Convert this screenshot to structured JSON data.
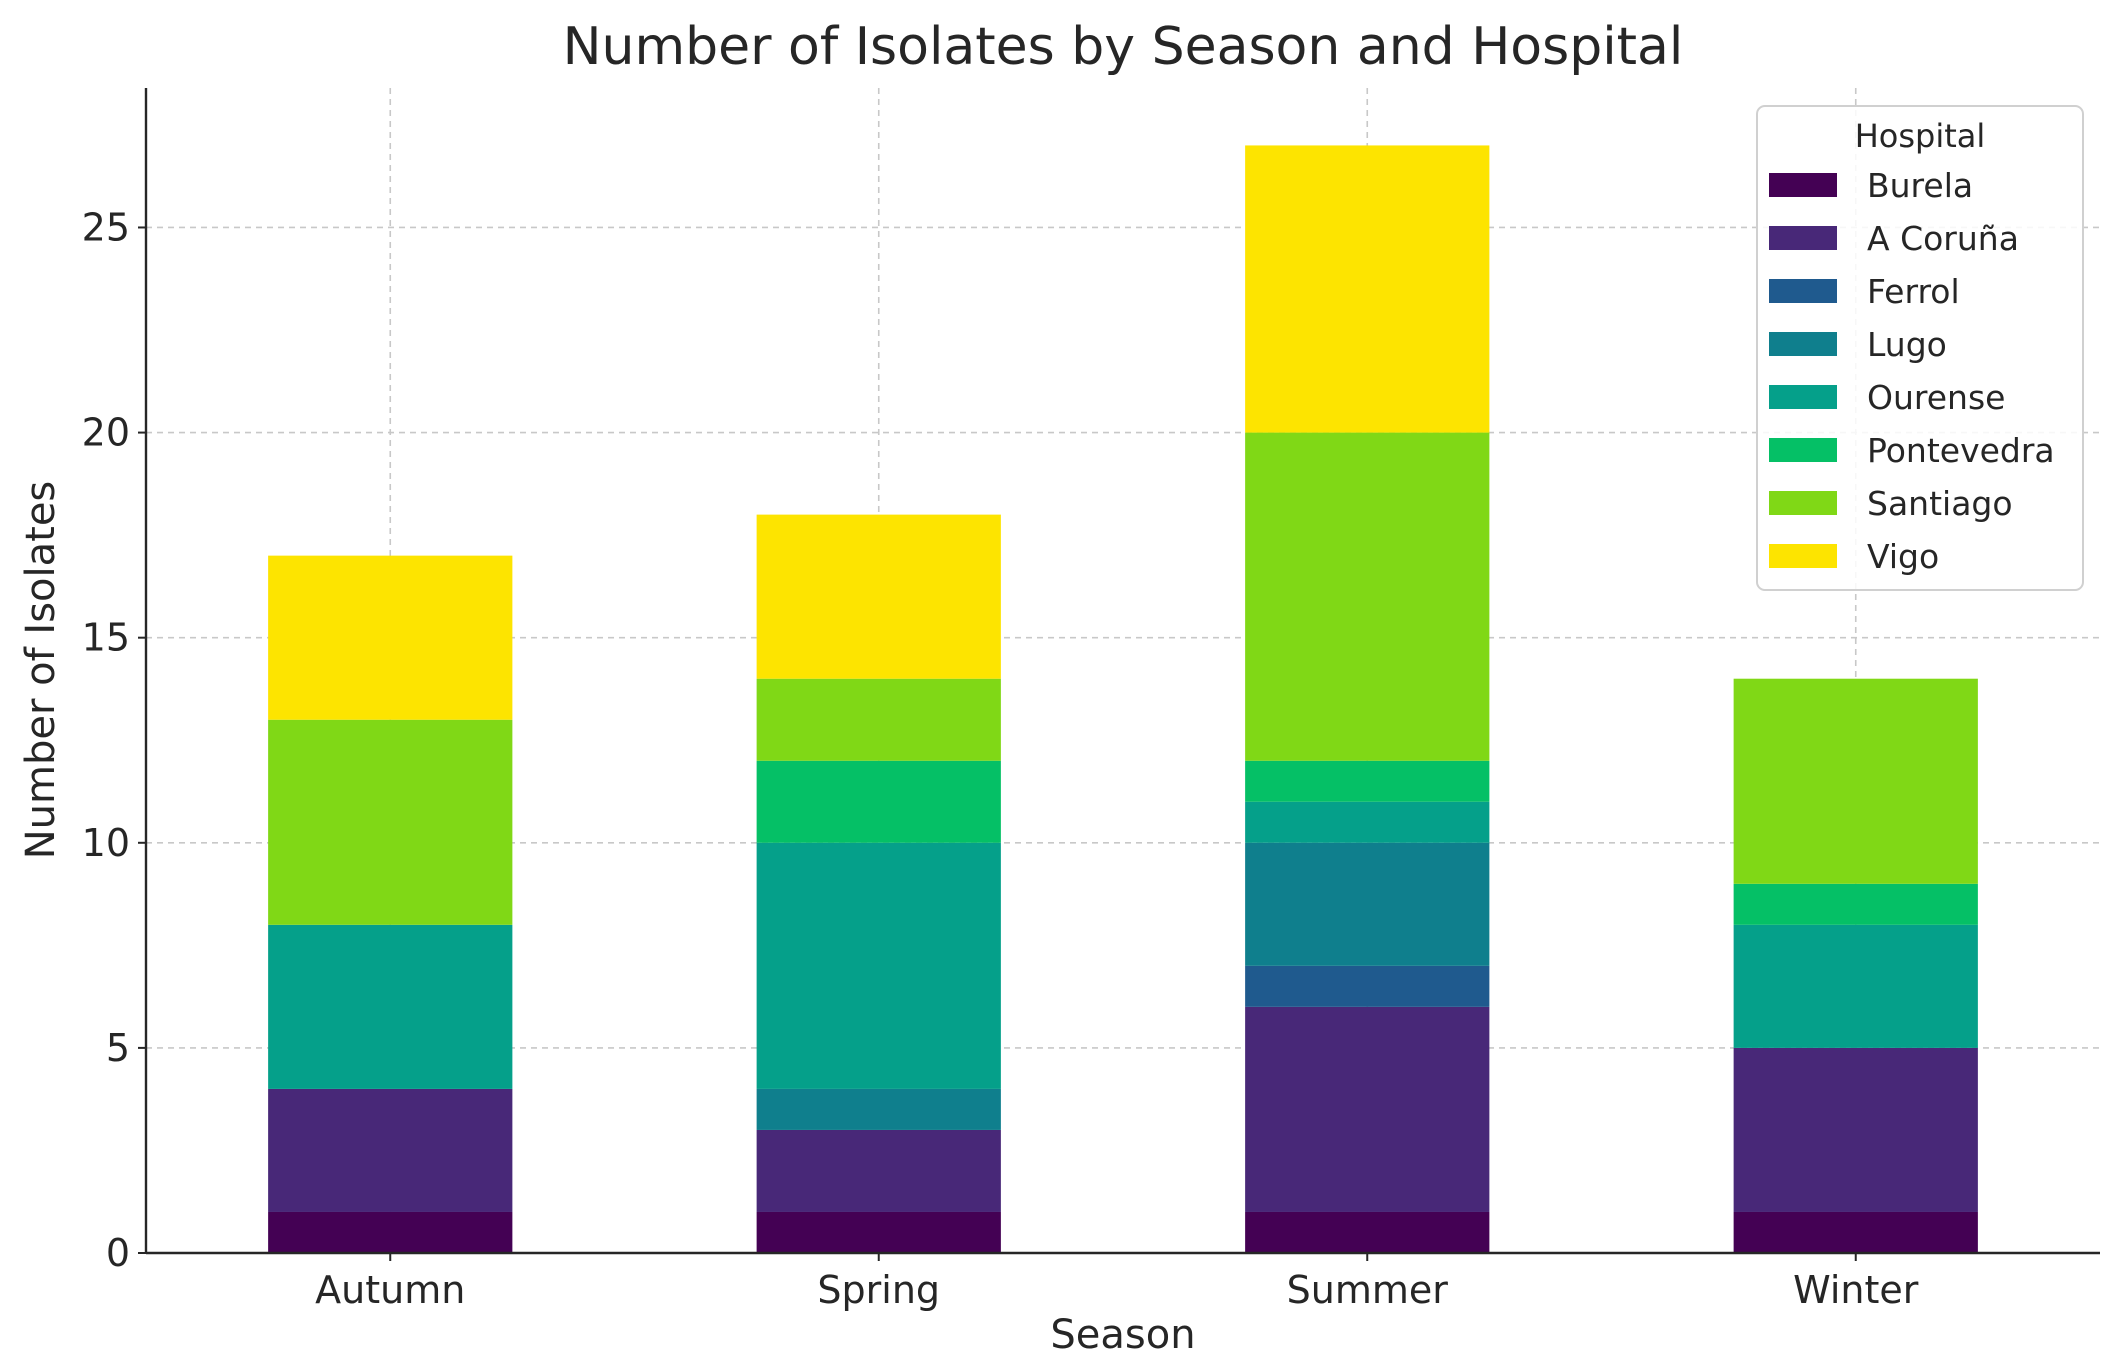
{
  "chart_data": {
    "type": "bar",
    "stacked": true,
    "title": "Number of Isolates by Season and Hospital",
    "xlabel": "Season",
    "ylabel": "Number of Isolates",
    "categories": [
      "Autumn",
      "Spring",
      "Summer",
      "Winter"
    ],
    "ylim": [
      0,
      28.4
    ],
    "yticks": [
      0,
      5,
      10,
      15,
      20,
      25
    ],
    "grid": true,
    "legend": {
      "title": "Hospital",
      "placement": "top-right"
    },
    "series": [
      {
        "name": "Burela",
        "color": "#440154",
        "values": [
          1,
          1,
          1,
          1
        ]
      },
      {
        "name": "A Coruña",
        "color": "#482878",
        "values": [
          3,
          2,
          5,
          4
        ]
      },
      {
        "name": "Ferrol",
        "color": "#1f5a8e",
        "values": [
          0,
          0,
          1,
          0
        ]
      },
      {
        "name": "Lugo",
        "color": "#0f7f8d",
        "values": [
          0,
          1,
          3,
          0
        ]
      },
      {
        "name": "Ourense",
        "color": "#05a08a",
        "values": [
          4,
          6,
          1,
          3
        ]
      },
      {
        "name": "Pontevedra",
        "color": "#05c066",
        "values": [
          0,
          2,
          1,
          1
        ]
      },
      {
        "name": "Santiago",
        "color": "#80d816",
        "values": [
          5,
          2,
          8,
          5
        ]
      },
      {
        "name": "Vigo",
        "color": "#fde400",
        "values": [
          4,
          4,
          7,
          0
        ]
      }
    ]
  }
}
